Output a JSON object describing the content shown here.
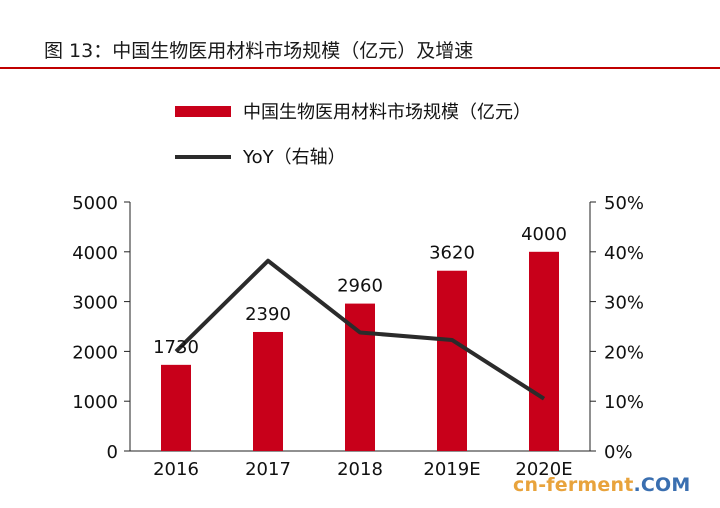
{
  "figure": {
    "title": "图 13：中国生物医用材料市场规模（亿元）及增速",
    "accent_color": "#c00000"
  },
  "chart_data": {
    "type": "bar",
    "categories": [
      "2016",
      "2017",
      "2018",
      "2019E",
      "2020E"
    ],
    "series": [
      {
        "name": "中国生物医用材料市场规模（亿元）",
        "kind": "bar",
        "axis": "left",
        "color": "#c8001a",
        "values": [
          1730,
          2390,
          2960,
          3620,
          4000
        ],
        "labels": [
          "1730",
          "2390",
          "2960",
          "3620",
          "4000"
        ]
      },
      {
        "name": "YoY（右轴）",
        "kind": "line",
        "axis": "right",
        "color": "#2b2b2b",
        "values": [
          20,
          38.2,
          23.8,
          22.3,
          10.5
        ]
      }
    ],
    "y_left": {
      "min": 0,
      "max": 5000,
      "ticks": [
        0,
        1000,
        2000,
        3000,
        4000,
        5000
      ],
      "tick_labels": [
        "0",
        "1000",
        "2000",
        "3000",
        "4000",
        "5000"
      ]
    },
    "y_right": {
      "min": 0,
      "max": 50,
      "ticks": [
        0,
        10,
        20,
        30,
        40,
        50
      ],
      "tick_labels": [
        "0%",
        "10%",
        "20%",
        "30%",
        "40%",
        "50%"
      ]
    },
    "grid": false,
    "legend_position": "top"
  },
  "watermark": {
    "part1": "cn-ferment",
    "part2": ".COM"
  }
}
